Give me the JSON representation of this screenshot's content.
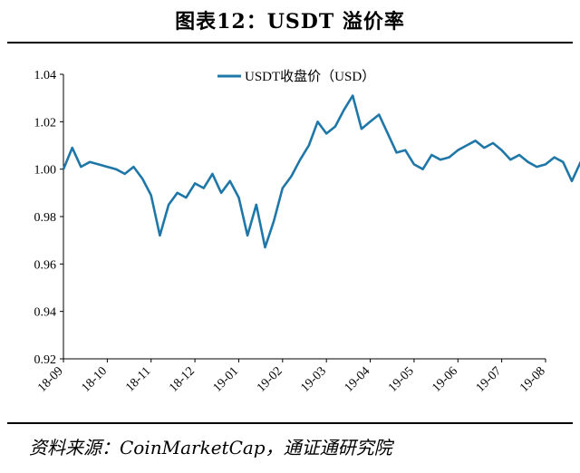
{
  "header": {
    "title": "图表12：USDT 溢价率"
  },
  "footer": {
    "source": "资料来源：CoinMarketCap，通证通研究院"
  },
  "colors": {
    "series": "#1f77a8",
    "axis": "#000000"
  },
  "chart_data": {
    "type": "line",
    "title": "",
    "xlabel": "",
    "ylabel": "",
    "ylim": [
      0.92,
      1.04
    ],
    "yticks": [
      "1.04",
      "1.02",
      "1.00",
      "0.98",
      "0.96",
      "0.94",
      "0.92"
    ],
    "xticks": [
      "18-09",
      "18-10",
      "18-11",
      "18-12",
      "19-01",
      "19-02",
      "19-03",
      "19-04",
      "19-05",
      "19-06",
      "19-07",
      "19-08"
    ],
    "legend": "top-center",
    "grid": false,
    "series": [
      {
        "name": "USDT收盘价（USD）",
        "x": [
          0,
          0.2,
          0.4,
          0.6,
          0.8,
          1,
          1.2,
          1.4,
          1.6,
          1.8,
          2,
          2.2,
          2.4,
          2.6,
          2.8,
          3,
          3.2,
          3.4,
          3.6,
          3.8,
          4,
          4.2,
          4.4,
          4.6,
          4.8,
          5,
          5.2,
          5.4,
          5.6,
          5.8,
          6,
          6.2,
          6.4,
          6.6,
          6.8,
          7,
          7.2,
          7.4,
          7.6,
          7.8,
          8,
          8.2,
          8.4,
          8.6,
          8.8,
          9,
          9.2,
          9.4,
          9.6,
          9.8,
          10,
          10.2,
          10.4,
          10.6,
          10.8,
          11,
          11.2,
          11.4,
          11.6,
          11.8,
          12
        ],
        "values": [
          1.0,
          1.009,
          1.001,
          1.003,
          1.002,
          1.001,
          1.0,
          0.998,
          1.001,
          0.996,
          0.989,
          0.972,
          0.985,
          0.99,
          0.988,
          0.994,
          0.992,
          0.998,
          0.99,
          0.995,
          0.988,
          0.972,
          0.985,
          0.967,
          0.978,
          0.992,
          0.997,
          1.004,
          1.01,
          1.02,
          1.015,
          1.018,
          1.025,
          1.031,
          1.017,
          1.02,
          1.023,
          1.015,
          1.007,
          1.008,
          1.002,
          1.0,
          1.006,
          1.004,
          1.005,
          1.008,
          1.01,
          1.012,
          1.009,
          1.011,
          1.008,
          1.004,
          1.006,
          1.003,
          1.001,
          1.002,
          1.005,
          1.003,
          0.995,
          1.003,
          1.004
        ]
      }
    ]
  }
}
